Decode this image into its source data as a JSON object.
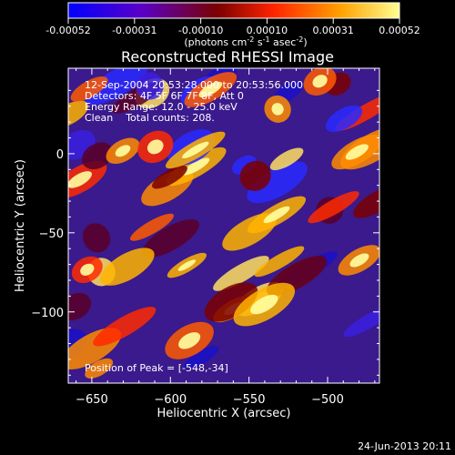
{
  "colorbar": {
    "ticks": [
      "-0.00052",
      "-0.00031",
      "-0.00010",
      "0.00010",
      "0.00031",
      "0.00052"
    ],
    "units_pre": "(photons cm",
    "units_sup1": "-2",
    "units_mid1": " s",
    "units_sup2": "-1",
    "units_mid2": " asec",
    "units_sup3": "-2",
    "units_post": ")",
    "range": [
      -0.00052,
      0.00052
    ],
    "colors": [
      "#0000ff",
      "#5a00c8",
      "#7a0000",
      "#ff2400",
      "#ffa000",
      "#ffff90"
    ]
  },
  "chart_data": {
    "type": "heatmap",
    "title": "Reconstructed RHESSI Image",
    "xlabel": "Heliocentric X (arcsec)",
    "ylabel": "Heliocentric Y (arcsec)",
    "xlim": [
      -665,
      -467
    ],
    "ylim": [
      -145,
      54
    ],
    "x_ticks": [
      -650,
      -600,
      -550,
      -500
    ],
    "x_tick_labels": [
      "−650",
      "−600",
      "−550",
      "−500"
    ],
    "y_ticks": [
      0,
      -50,
      -100
    ],
    "y_tick_labels": [
      "0",
      "−50",
      "−100"
    ],
    "peak_position": [
      -548,
      -34
    ],
    "annotations": [
      "12-Sep-2004 20:53:28.000 to 20:53:56.000",
      "Detectors: 4F 5F 6F 7F 8F, Att 0",
      "Energy Range: 12.0 - 25.0 keV",
      "Clean    Total counts: 208.",
      "Position of Peak = [-548,-34]"
    ]
  },
  "footer": {
    "date": "24-Jun-2013 20:11"
  }
}
